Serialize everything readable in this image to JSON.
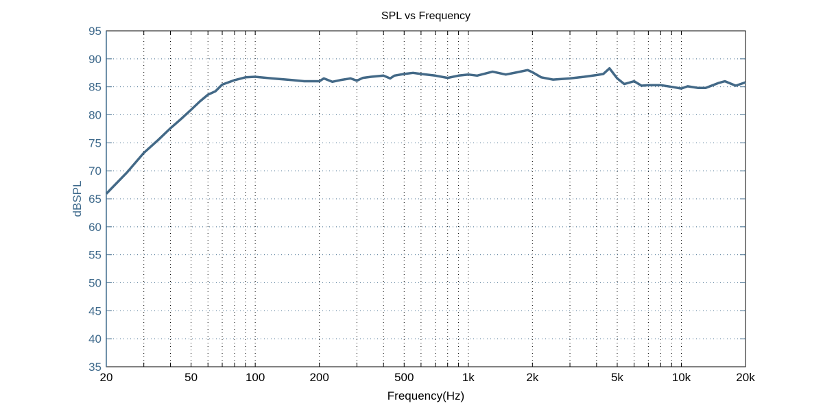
{
  "chart_data": {
    "type": "line",
    "title": "SPL vs Frequency",
    "xlabel": "Frequency(Hz)",
    "ylabel": "dBSPL",
    "xscale": "log",
    "xlim": [
      20,
      20000
    ],
    "ylim": [
      35,
      95
    ],
    "grid": true,
    "x_tick_values": [
      20,
      50,
      100,
      200,
      500,
      1000,
      2000,
      5000,
      10000,
      20000
    ],
    "x_tick_labels": [
      "20",
      "50",
      "100",
      "200",
      "500",
      "1k",
      "2k",
      "5k",
      "10k",
      "20k"
    ],
    "y_tick_values": [
      35,
      40,
      45,
      50,
      55,
      60,
      65,
      70,
      75,
      80,
      85,
      90,
      95
    ],
    "y_tick_labels": [
      "35",
      "40",
      "45",
      "50",
      "55",
      "60",
      "65",
      "70",
      "75",
      "80",
      "85",
      "90",
      "95"
    ],
    "line_color": "#436987",
    "series": [
      {
        "x": [
          20,
          25,
          30,
          35,
          40,
          45,
          50,
          55,
          60,
          65,
          70,
          80,
          90,
          100,
          120,
          150,
          170,
          200,
          210,
          230,
          250,
          280,
          300,
          320,
          350,
          400,
          430,
          450,
          500,
          550,
          600,
          700,
          800,
          900,
          1000,
          1100,
          1300,
          1500,
          1700,
          1900,
          2000,
          2200,
          2500,
          3000,
          3500,
          4000,
          4300,
          4600,
          5000,
          5400,
          6000,
          6500,
          7000,
          8000,
          9000,
          10000,
          10700,
          12000,
          13000,
          15000,
          16000,
          18000,
          20000
        ],
        "y": [
          65.9,
          69.7,
          73.2,
          75.5,
          77.6,
          79.3,
          80.9,
          82.4,
          83.6,
          84.2,
          85.4,
          86.2,
          86.7,
          86.8,
          86.5,
          86.2,
          86.0,
          86.0,
          86.5,
          85.9,
          86.2,
          86.5,
          86.1,
          86.6,
          86.8,
          87.0,
          86.5,
          87.0,
          87.3,
          87.5,
          87.3,
          87.0,
          86.6,
          87.0,
          87.2,
          87.0,
          87.7,
          87.2,
          87.6,
          88.0,
          87.6,
          86.7,
          86.3,
          86.5,
          86.8,
          87.1,
          87.3,
          88.3,
          86.5,
          85.5,
          86.0,
          85.2,
          85.3,
          85.3,
          85.0,
          84.7,
          85.1,
          84.8,
          84.8,
          85.7,
          86.0,
          85.2,
          85.8
        ]
      }
    ]
  }
}
